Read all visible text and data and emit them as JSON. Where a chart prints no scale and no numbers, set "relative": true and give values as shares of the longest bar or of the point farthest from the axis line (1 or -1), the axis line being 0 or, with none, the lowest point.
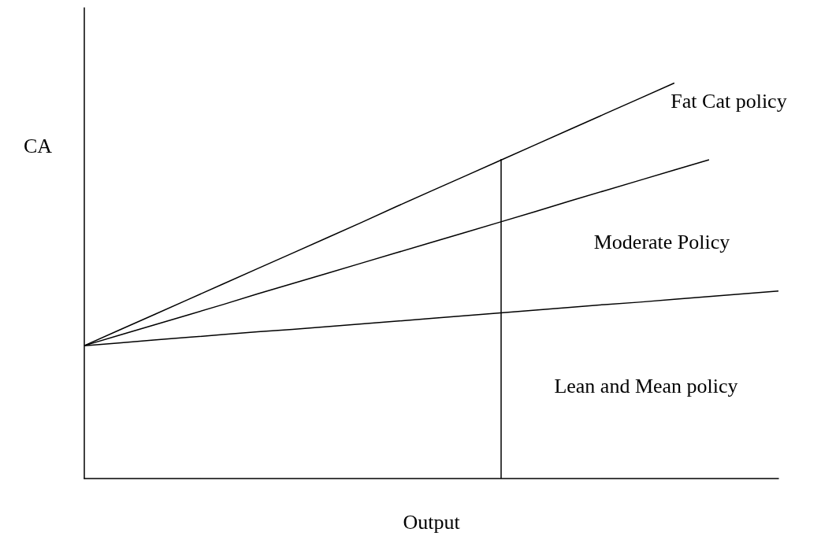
{
  "chart_data": {
    "type": "line",
    "relative": true,
    "xlabel": "Output",
    "ylabel": "CA",
    "marker": "none",
    "line_style": "solid",
    "grid": false,
    "categories": [
      null,
      null,
      null,
      null,
      null,
      null,
      null,
      null,
      null,
      null,
      null,
      null,
      null,
      null,
      null,
      null,
      null,
      null,
      null,
      null,
      null
    ],
    "series": [
      {
        "color": "#000000",
        "values": [
          0.336,
          0.375,
          0.414,
          0.453,
          0.492,
          0.531,
          0.57,
          0.609,
          0.648,
          0.688,
          0.727,
          0.766,
          0.805,
          0.844,
          0.883,
          0.922,
          0.961,
          1.0,
          null,
          null,
          null
        ]
      },
      {
        "color": "#000000",
        "values": [
          0.336,
          0.362,
          0.388,
          0.414,
          0.44,
          0.467,
          0.493,
          0.519,
          0.545,
          0.571,
          0.597,
          0.623,
          0.649,
          0.675,
          0.702,
          0.728,
          0.754,
          0.78,
          0.806,
          null,
          null
        ]
      },
      {
        "color": "#000000",
        "values": [
          0.336,
          0.343,
          0.35,
          0.357,
          0.364,
          0.371,
          0.377,
          0.384,
          0.391,
          0.398,
          0.405,
          0.412,
          0.419,
          0.426,
          0.433,
          0.44,
          0.446,
          0.453,
          0.46,
          0.467,
          0.474
        ]
      }
    ],
    "annotations": [
      "Fat Cat policy",
      "Moderate Policy",
      "Lean and Mean policy"
    ]
  }
}
